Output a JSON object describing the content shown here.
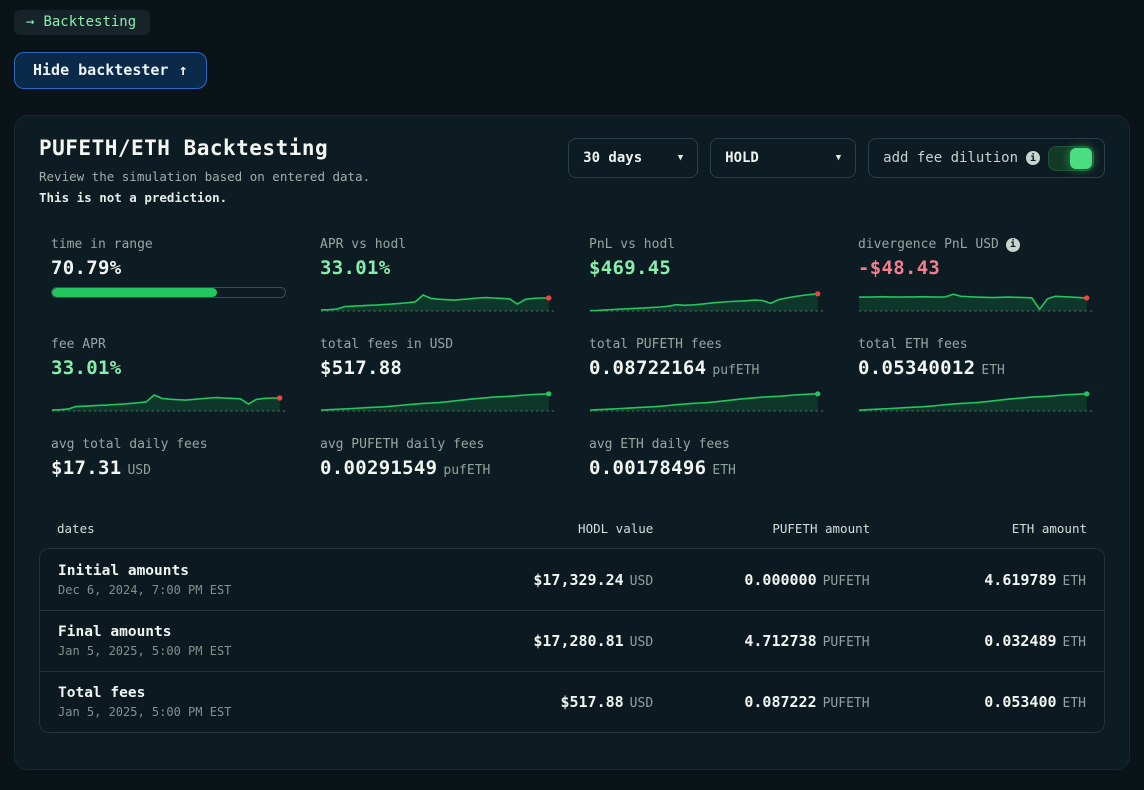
{
  "colors": {
    "accent_green": "#22c55e",
    "mint_text": "#86efac",
    "pink_text": "#f47e90",
    "dot_red": "#ef4444",
    "dot_green": "#22c55e",
    "spark_fill": "rgba(34,197,94,0.16)",
    "baseline": "#5c6c68"
  },
  "breadcrumb": {
    "arrow": "→",
    "label": "Backtesting"
  },
  "hide_button": {
    "label": "Hide backtester",
    "arrow": "↑"
  },
  "panel": {
    "title": "PUFETH/ETH Backtesting",
    "subtitle": "Review the simulation based on entered data.",
    "disclaimer": "This is not a prediction.",
    "controls": {
      "period": {
        "value": "30 days",
        "caret": "▼"
      },
      "strategy": {
        "value": "HOLD",
        "caret": "▼"
      },
      "fee_dilution": {
        "label": "add fee dilution",
        "info_glyph": "i",
        "enabled": true
      }
    },
    "metrics": [
      {
        "id": "time-in-range",
        "label": "time in range",
        "value": "70.79%",
        "color": "white",
        "visual": "progress",
        "progress_pct": 70.79
      },
      {
        "id": "apr-vs-hodl",
        "label": "APR vs hodl",
        "value": "33.01%",
        "color": "mint",
        "visual": "spark",
        "spark": "apr",
        "dot": "red"
      },
      {
        "id": "pnl-vs-hodl",
        "label": "PnL vs hodl",
        "value": "$469.45",
        "color": "mint",
        "visual": "spark",
        "spark": "pnl",
        "dot": "red"
      },
      {
        "id": "divergence-pnl-usd",
        "label": "divergence PnL USD",
        "value": "-$48.43",
        "color": "pink",
        "visual": "spark",
        "spark": "div",
        "dot": "red",
        "info": true
      },
      {
        "id": "fee-apr",
        "label": "fee APR",
        "value": "33.01%",
        "color": "mint",
        "visual": "spark",
        "spark": "apr",
        "dot": "red"
      },
      {
        "id": "total-fees-usd",
        "label": "total fees in USD",
        "value": "$517.88",
        "color": "white",
        "visual": "spark",
        "spark": "fees",
        "dot": "green"
      },
      {
        "id": "total-pufeth-fees",
        "label": "total PUFETH fees",
        "value": "0.08722164",
        "unit": "pufETH",
        "color": "white",
        "visual": "spark",
        "spark": "fees",
        "dot": "green"
      },
      {
        "id": "total-eth-fees",
        "label": "total ETH fees",
        "value": "0.05340012",
        "unit": "ETH",
        "color": "white",
        "visual": "spark",
        "spark": "fees",
        "dot": "green"
      },
      {
        "id": "avg-total-daily-fees",
        "label": "avg total daily fees",
        "value": "$17.31",
        "unit": "USD",
        "color": "white",
        "visual": "none"
      },
      {
        "id": "avg-pufeth-daily-fees",
        "label": "avg PUFETH daily fees",
        "value": "0.00291549",
        "unit": "pufETH",
        "color": "white",
        "visual": "none"
      },
      {
        "id": "avg-eth-daily-fees",
        "label": "avg ETH daily fees",
        "value": "0.00178496",
        "unit": "ETH",
        "color": "white",
        "visual": "none"
      }
    ],
    "sparklines": {
      "apr": [
        0.05,
        0.06,
        0.09,
        0.21,
        0.23,
        0.25,
        0.27,
        0.28,
        0.31,
        0.33,
        0.36,
        0.39,
        0.44,
        0.76,
        0.6,
        0.56,
        0.54,
        0.52,
        0.55,
        0.58,
        0.62,
        0.64,
        0.62,
        0.6,
        0.58,
        0.33,
        0.55,
        0.6,
        0.62,
        0.62
      ],
      "pnl": [
        0.02,
        0.03,
        0.05,
        0.07,
        0.09,
        0.11,
        0.13,
        0.15,
        0.17,
        0.19,
        0.23,
        0.3,
        0.27,
        0.29,
        0.32,
        0.36,
        0.4,
        0.43,
        0.45,
        0.47,
        0.49,
        0.52,
        0.5,
        0.36,
        0.54,
        0.62,
        0.68,
        0.74,
        0.78,
        0.82
      ],
      "div": [
        0.66,
        0.66,
        0.67,
        0.68,
        0.67,
        0.66,
        0.67,
        0.67,
        0.68,
        0.67,
        0.66,
        0.67,
        0.8,
        0.7,
        0.68,
        0.66,
        0.65,
        0.64,
        0.65,
        0.66,
        0.65,
        0.64,
        0.63,
        0.08,
        0.58,
        0.7,
        0.68,
        0.66,
        0.64,
        0.62
      ],
      "fees": [
        0.04,
        0.06,
        0.08,
        0.1,
        0.12,
        0.14,
        0.16,
        0.18,
        0.2,
        0.23,
        0.26,
        0.3,
        0.33,
        0.36,
        0.38,
        0.4,
        0.44,
        0.48,
        0.52,
        0.56,
        0.6,
        0.63,
        0.66,
        0.68,
        0.7,
        0.73,
        0.76,
        0.78,
        0.8,
        0.82
      ]
    },
    "table": {
      "columns": [
        "dates",
        "HODL value",
        "PUFETH amount",
        "ETH amount"
      ],
      "rows": [
        {
          "name": "Initial amounts",
          "date": "Dec 6, 2024, 7:00 PM EST",
          "hodl": {
            "value": "$17,329.24",
            "unit": "USD"
          },
          "pufeth": {
            "value": "0.000000",
            "unit": "PUFETH"
          },
          "eth": {
            "value": "4.619789",
            "unit": "ETH"
          }
        },
        {
          "name": "Final amounts",
          "date": "Jan 5, 2025, 5:00 PM EST",
          "hodl": {
            "value": "$17,280.81",
            "unit": "USD"
          },
          "pufeth": {
            "value": "4.712738",
            "unit": "PUFETH"
          },
          "eth": {
            "value": "0.032489",
            "unit": "ETH"
          }
        },
        {
          "name": "Total fees",
          "date": "Jan 5, 2025, 5:00 PM EST",
          "hodl": {
            "value": "$517.88",
            "unit": "USD"
          },
          "pufeth": {
            "value": "0.087222",
            "unit": "PUFETH"
          },
          "eth": {
            "value": "0.053400",
            "unit": "ETH"
          }
        }
      ]
    }
  }
}
